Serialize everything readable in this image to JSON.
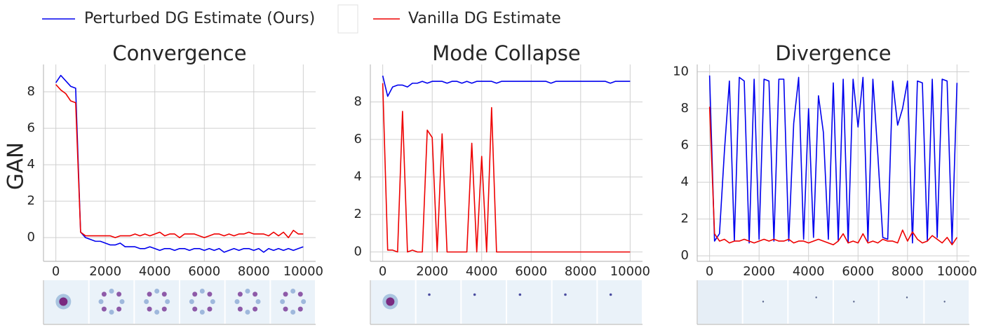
{
  "legend": [
    {
      "name": "Perturbed DG Estimate (Ours)",
      "color": "#0000ee"
    },
    {
      "name": "Vanilla DG Estimate",
      "color": "#ee0000"
    }
  ],
  "chart_data": [
    {
      "type": "line",
      "title": "Convergence",
      "ylabel": "GAN",
      "x": [
        0,
        200,
        400,
        600,
        800,
        1000,
        1200,
        1400,
        1600,
        1800,
        2000,
        2200,
        2400,
        2600,
        2800,
        3000,
        3200,
        3400,
        3600,
        3800,
        4000,
        4200,
        4400,
        4600,
        4800,
        5000,
        5200,
        5400,
        5600,
        5800,
        6000,
        6200,
        6400,
        6600,
        6800,
        7000,
        7200,
        7400,
        7600,
        7800,
        8000,
        8200,
        8400,
        8600,
        8800,
        9000,
        9200,
        9400,
        9600,
        9800,
        10000
      ],
      "series": [
        {
          "values": [
            8.5,
            8.9,
            8.6,
            8.3,
            8.2,
            0.3,
            0.0,
            -0.1,
            -0.2,
            -0.2,
            -0.3,
            -0.4,
            -0.4,
            -0.3,
            -0.5,
            -0.5,
            -0.5,
            -0.6,
            -0.6,
            -0.5,
            -0.6,
            -0.7,
            -0.6,
            -0.6,
            -0.7,
            -0.6,
            -0.6,
            -0.7,
            -0.6,
            -0.6,
            -0.7,
            -0.6,
            -0.7,
            -0.6,
            -0.8,
            -0.7,
            -0.6,
            -0.7,
            -0.6,
            -0.6,
            -0.7,
            -0.6,
            -0.8,
            -0.6,
            -0.7,
            -0.6,
            -0.7,
            -0.6,
            -0.7,
            -0.6,
            -0.5
          ]
        },
        {
          "values": [
            8.4,
            8.1,
            7.9,
            7.5,
            7.4,
            0.3,
            0.1,
            0.1,
            0.1,
            0.1,
            0.1,
            0.1,
            0.0,
            0.1,
            0.1,
            0.1,
            0.2,
            0.1,
            0.2,
            0.1,
            0.2,
            0.3,
            0.1,
            0.2,
            0.2,
            0.0,
            0.2,
            0.2,
            0.2,
            0.1,
            0.0,
            0.1,
            0.2,
            0.2,
            0.1,
            0.2,
            0.1,
            0.2,
            0.2,
            0.3,
            0.2,
            0.2,
            0.2,
            0.1,
            0.3,
            0.1,
            0.3,
            0.0,
            0.4,
            0.2,
            0.2
          ]
        }
      ],
      "xlim": [
        -500,
        10500
      ],
      "xticks": [
        0,
        2000,
        4000,
        6000,
        8000,
        10000
      ],
      "ylim": [
        -1.3,
        9.5
      ],
      "yticks": [
        0,
        2,
        4,
        6,
        8
      ],
      "grid": true
    },
    {
      "type": "line",
      "title": "Mode Collapse",
      "x": [
        0,
        200,
        400,
        600,
        800,
        1000,
        1200,
        1400,
        1600,
        1800,
        2000,
        2200,
        2400,
        2600,
        2800,
        3000,
        3200,
        3400,
        3600,
        3800,
        4000,
        4200,
        4400,
        4600,
        4800,
        5000,
        5200,
        5400,
        5600,
        5800,
        6000,
        6200,
        6400,
        6600,
        6800,
        7000,
        7200,
        7400,
        7600,
        7800,
        8000,
        8200,
        8400,
        8600,
        8800,
        9000,
        9200,
        9400,
        9600,
        9800,
        10000
      ],
      "series": [
        {
          "values": [
            9.4,
            8.3,
            8.8,
            8.9,
            8.9,
            8.8,
            9.0,
            9.0,
            9.1,
            9.0,
            9.1,
            9.1,
            9.1,
            9.0,
            9.1,
            9.1,
            9.0,
            9.1,
            9.0,
            9.1,
            9.1,
            9.1,
            9.1,
            9.0,
            9.1,
            9.1,
            9.1,
            9.1,
            9.1,
            9.1,
            9.1,
            9.1,
            9.1,
            9.1,
            9.0,
            9.1,
            9.1,
            9.1,
            9.1,
            9.1,
            9.1,
            9.1,
            9.1,
            9.1,
            9.1,
            9.1,
            9.0,
            9.1,
            9.1,
            9.1,
            9.1
          ]
        },
        {
          "values": [
            9.0,
            0.1,
            0.1,
            0.0,
            7.5,
            0.0,
            0.1,
            0.0,
            0.0,
            6.5,
            6.1,
            0.0,
            6.3,
            0.0,
            0.0,
            0.0,
            0.0,
            0.0,
            5.8,
            0.0,
            5.1,
            0.0,
            7.7,
            0.0,
            0.0,
            0.0,
            0.0,
            0.0,
            0.0,
            0.0,
            0.0,
            0.0,
            0.0,
            0.0,
            0.0,
            0.0,
            0.0,
            0.0,
            0.0,
            0.0,
            0.0,
            0.0,
            0.0,
            0.0,
            0.0,
            0.0,
            0.0,
            0.0,
            0.0,
            0.0,
            0.0
          ]
        }
      ],
      "xlim": [
        -500,
        10500
      ],
      "xticks": [
        0,
        2000,
        4000,
        6000,
        8000,
        10000
      ],
      "ylim": [
        -0.5,
        10
      ],
      "yticks": [
        0,
        2,
        4,
        6,
        8
      ],
      "grid": true
    },
    {
      "type": "line",
      "title": "Divergence",
      "x": [
        0,
        200,
        400,
        600,
        800,
        1000,
        1200,
        1400,
        1600,
        1800,
        2000,
        2200,
        2400,
        2600,
        2800,
        3000,
        3200,
        3400,
        3600,
        3800,
        4000,
        4200,
        4400,
        4600,
        4800,
        5000,
        5200,
        5400,
        5600,
        5800,
        6000,
        6200,
        6400,
        6600,
        6800,
        7000,
        7200,
        7400,
        7600,
        7800,
        8000,
        8200,
        8400,
        8600,
        8800,
        9000,
        9200,
        9400,
        9600,
        9800,
        10000
      ],
      "series": [
        {
          "values": [
            9.8,
            0.8,
            1.2,
            5.7,
            9.5,
            0.8,
            9.7,
            9.5,
            0.7,
            9.6,
            0.9,
            9.6,
            9.5,
            0.8,
            9.6,
            9.6,
            0.8,
            7.2,
            9.7,
            0.9,
            8.0,
            1.0,
            8.7,
            6.7,
            0.9,
            9.4,
            0.8,
            9.6,
            0.7,
            9.6,
            7.0,
            9.7,
            0.8,
            9.6,
            5.5,
            1.0,
            0.9,
            9.5,
            7.1,
            8.0,
            9.5,
            0.7,
            9.5,
            9.4,
            0.8,
            9.6,
            1.0,
            9.6,
            9.5,
            0.7,
            9.4
          ]
        },
        {
          "values": [
            8.1,
            1.2,
            0.8,
            0.9,
            0.7,
            0.8,
            0.8,
            0.9,
            0.8,
            0.7,
            0.8,
            0.9,
            0.8,
            0.9,
            0.8,
            0.8,
            0.9,
            0.7,
            0.8,
            0.8,
            0.7,
            0.8,
            0.9,
            0.8,
            0.7,
            0.6,
            0.8,
            1.2,
            0.7,
            0.8,
            0.7,
            1.2,
            0.7,
            0.8,
            0.7,
            0.9,
            0.8,
            0.8,
            0.7,
            1.4,
            0.8,
            1.3,
            0.9,
            0.7,
            0.8,
            1.1,
            0.9,
            0.7,
            1.0,
            0.6,
            1.0
          ]
        }
      ],
      "xlim": [
        -500,
        10500
      ],
      "xticks": [
        0,
        2000,
        4000,
        6000,
        8000,
        10000
      ],
      "ylim": [
        -0.3,
        10.4
      ],
      "yticks": [
        0,
        2,
        4,
        6,
        8,
        10
      ],
      "grid": true
    }
  ]
}
